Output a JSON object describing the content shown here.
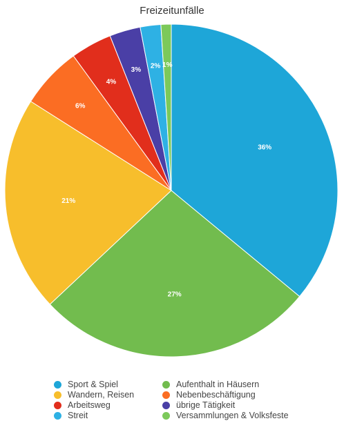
{
  "chart_data": {
    "type": "pie",
    "title": "Freizeitunfälle",
    "slices": [
      {
        "name": "Sport & Spiel",
        "value": 36,
        "label": "36%",
        "color": "#1ea6d8"
      },
      {
        "name": "Aufenthalt in Häusern",
        "value": 27,
        "label": "27%",
        "color": "#72bc4e"
      },
      {
        "name": "Wandern, Reisen",
        "value": 21,
        "label": "21%",
        "color": "#f7be2c"
      },
      {
        "name": "Nebenbeschäftigung",
        "value": 6,
        "label": "6%",
        "color": "#fb6d23"
      },
      {
        "name": "Arbeitsweg",
        "value": 4,
        "label": "4%",
        "color": "#e12e1c"
      },
      {
        "name": "übrige Tätigkeit",
        "value": 3,
        "label": "3%",
        "color": "#4a3fa6"
      },
      {
        "name": "Streit",
        "value": 2,
        "label": "2%",
        "color": "#2eb1e4"
      },
      {
        "name": "Versammlungen & Volksfeste",
        "value": 1,
        "label": "1%",
        "color": "#7cc95a"
      }
    ],
    "legend": {
      "placement": "bottom",
      "columns": [
        [
          "Sport & Spiel",
          "Wandern, Reisen",
          "Arbeitsweg",
          "Streit"
        ],
        [
          "Aufenthalt in Häusern",
          "Nebenbeschäftigung",
          "übrige Tätigkeit",
          "Versammlungen & Volksfeste"
        ]
      ]
    }
  }
}
